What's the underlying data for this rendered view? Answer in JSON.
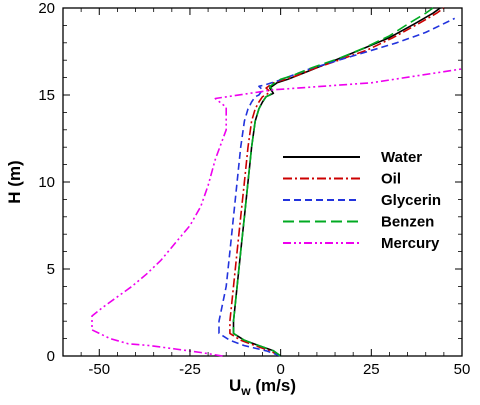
{
  "chart_data": {
    "type": "line",
    "xlabel_main": "U",
    "xlabel_sub": "w",
    "xlabel_unit": " (m/s)",
    "ylabel_main": "H",
    "ylabel_unit": " (m)",
    "xlim": [
      -60,
      50
    ],
    "ylim": [
      0,
      20
    ],
    "xticks": [
      -50,
      -25,
      0,
      25,
      50
    ],
    "yticks": [
      0,
      5,
      10,
      15,
      20
    ],
    "grid": false,
    "legend_position": "center-right",
    "series": [
      {
        "name": "Water",
        "color": "#000000",
        "dash": "solid",
        "x": [
          0,
          -2,
          -6,
          -10,
          -13,
          -13,
          -12,
          -11,
          -10,
          -9,
          -8,
          -7,
          -6,
          -5,
          -4,
          -3,
          -2,
          -3,
          -1,
          2,
          8,
          15,
          22,
          30,
          37,
          42,
          44
        ],
        "y": [
          0,
          0.3,
          0.6,
          0.9,
          1.3,
          2,
          4,
          6,
          8,
          10,
          12,
          13.5,
          14.2,
          14.6,
          14.9,
          15,
          15.1,
          15.4,
          15.7,
          15.9,
          16.4,
          17,
          17.6,
          18.3,
          19.1,
          19.7,
          20
        ]
      },
      {
        "name": "Oil",
        "color": "#cc0000",
        "dash": "dashdot",
        "x": [
          0,
          -3,
          -7,
          -11,
          -14,
          -14,
          -13,
          -12,
          -11,
          -10,
          -9,
          -8,
          -7,
          -6,
          -5,
          -4,
          -3,
          -4,
          -2,
          3,
          9,
          16,
          24,
          31,
          38,
          43,
          45
        ],
        "y": [
          0,
          0.3,
          0.6,
          0.9,
          1.3,
          2,
          4,
          6,
          8,
          10,
          12,
          13.5,
          14.2,
          14.6,
          14.9,
          15,
          15.2,
          15.4,
          15.7,
          16,
          16.5,
          17,
          17.6,
          18.3,
          19.1,
          19.7,
          20
        ]
      },
      {
        "name": "Glycerin",
        "color": "#2233dd",
        "dash": "dash",
        "x": [
          0,
          -4,
          -10,
          -14,
          -17,
          -17,
          -15,
          -14,
          -13,
          -12,
          -11,
          -10,
          -9,
          -8,
          -7,
          -6,
          -5,
          -6,
          -4,
          -1,
          8,
          16,
          24,
          32,
          40,
          44,
          48
        ],
        "y": [
          0,
          0.3,
          0.6,
          0.9,
          1.3,
          2,
          4,
          6,
          8,
          10,
          12,
          13.5,
          14.2,
          14.6,
          14.9,
          15,
          15.3,
          15.5,
          15.6,
          15.8,
          16.5,
          17,
          17.5,
          18,
          18.6,
          19,
          19.4
        ]
      },
      {
        "name": "Benzen",
        "color": "#00aa22",
        "dash": "longdash",
        "x": [
          0,
          -2,
          -6,
          -10,
          -13,
          -13,
          -12,
          -11,
          -10,
          -9,
          -8,
          -7,
          -6,
          -5,
          -4,
          -3,
          -2,
          -3,
          0,
          3,
          9,
          16,
          23,
          30,
          36,
          40,
          42
        ],
        "y": [
          0,
          0.3,
          0.6,
          0.9,
          1.3,
          2,
          4,
          6,
          8,
          10,
          12,
          13.5,
          14.2,
          14.6,
          14.9,
          15,
          15.2,
          15.5,
          15.9,
          16.1,
          16.6,
          17.1,
          17.7,
          18.4,
          19.2,
          19.7,
          20
        ]
      },
      {
        "name": "Mercury",
        "color": "#ee00ee",
        "dash": "dashdotdot",
        "x": [
          -16,
          -22,
          -29,
          -36,
          -42,
          -47,
          -52,
          -52,
          -49,
          -45,
          -41,
          -37,
          -33,
          -29,
          -25,
          -22,
          -20,
          -18,
          -15,
          -15,
          -18,
          -2,
          25,
          50
        ],
        "y": [
          0,
          0.2,
          0.4,
          0.6,
          0.7,
          1.0,
          1.5,
          2.3,
          2.8,
          3.4,
          4.0,
          4.7,
          5.5,
          6.5,
          7.5,
          8.6,
          9.8,
          11.3,
          13,
          14.3,
          14.8,
          15.3,
          15.7,
          16.5
        ]
      }
    ]
  }
}
